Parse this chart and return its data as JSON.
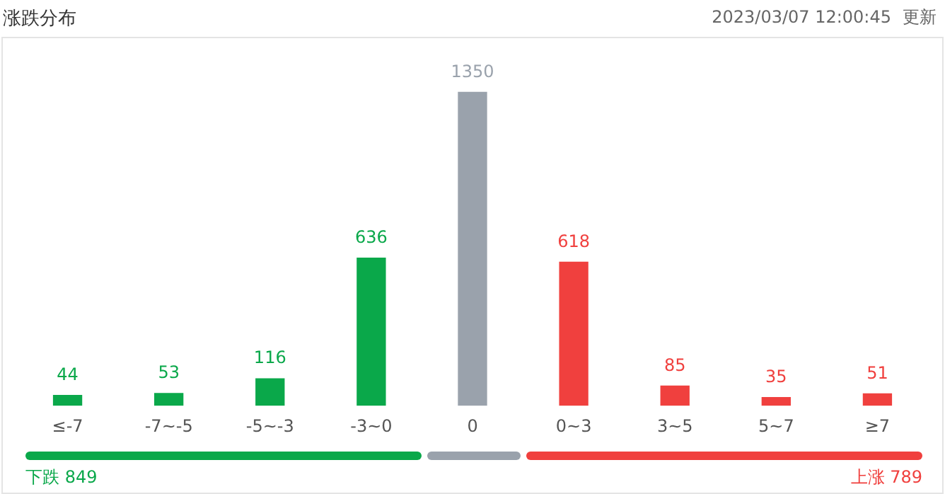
{
  "chart_data": {
    "type": "bar",
    "title": "涨跌分布",
    "categories": [
      "≤-7",
      "-7~-5",
      "-5~-3",
      "-3~0",
      "0",
      "0~3",
      "3~5",
      "5~7",
      "≥7"
    ],
    "values": [
      44,
      53,
      116,
      636,
      1350,
      618,
      85,
      35,
      51
    ],
    "colors": [
      "#0aa84a",
      "#0aa84a",
      "#0aa84a",
      "#0aa84a",
      "#9aa2ac",
      "#f0403e",
      "#f0403e",
      "#f0403e",
      "#f0403e"
    ],
    "data_labels": true,
    "grid": false,
    "legend": false,
    "annotations": [
      "2023/03/07 12:00:45",
      "更新",
      "下跌 849",
      "上涨 789"
    ]
  }
}
